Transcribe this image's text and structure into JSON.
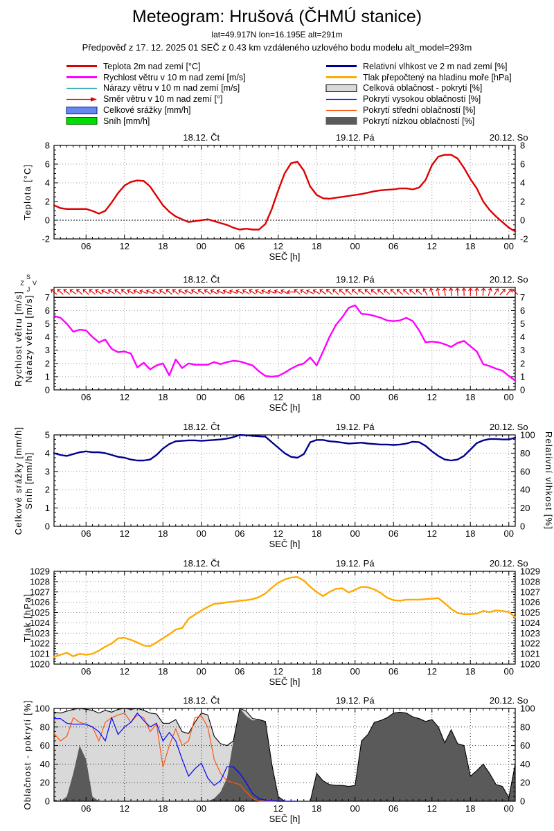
{
  "header": {
    "title": "Meteogram: Hrušová (ČHMÚ stanice)",
    "subtitle1": "lat=49.917N lon=16.195E alt=291m",
    "subtitle2": "Předpověď z 17. 12. 2025 01 SEČ z 0.43 km vzdáleného uzlového bodu modelu alt_model=293m"
  },
  "legend": {
    "left": [
      {
        "label": "Teplota 2m nad zemí [°C]",
        "key": "line",
        "width": 3,
        "color": "#dd0000",
        "icon": "temperature-line-icon"
      },
      {
        "label": "Rychlost větru v 10 m nad zemí [m/s]",
        "key": "line",
        "width": 3,
        "color": "#ff00ff",
        "icon": "wind-speed-line-icon"
      },
      {
        "label": "Nárazy větru v 10 m nad zemí [m/s]",
        "key": "line",
        "width": 1.2,
        "color": "#0099aa",
        "icon": "wind-gust-line-icon"
      },
      {
        "label": "Směr větru v 10 m nad zemí [°]",
        "key": "arrow",
        "color": "#dd0000",
        "icon": "wind-direction-arrow-icon"
      },
      {
        "label": "Celkové srážky [mm/h]",
        "key": "box",
        "color": "#6688ee",
        "border": "#001a99",
        "icon": "precipitation-box-icon"
      },
      {
        "label": "Sníh [mm/h]",
        "key": "box",
        "color": "#00dd00",
        "border": "#006600",
        "icon": "snow-box-icon"
      }
    ],
    "right": [
      {
        "label": "Relativní vlhkost ve 2 m nad zemí [%]",
        "key": "line",
        "width": 3,
        "color": "#000090",
        "icon": "humidity-line-icon"
      },
      {
        "label": "Tlak přepočtený na hladinu moře [hPa]",
        "key": "line",
        "width": 3,
        "color": "#ffaa00",
        "icon": "pressure-line-icon"
      },
      {
        "label": "Celková oblačnost - pokrytí [%]",
        "key": "box",
        "color": "#d9d9d9",
        "border": "#000000",
        "icon": "total-cloud-box-icon"
      },
      {
        "label": "Pokrytí vysokou oblačností [%]",
        "key": "line",
        "width": 1.2,
        "color": "#0000ff",
        "icon": "high-cloud-line-icon"
      },
      {
        "label": "Pokrytí střední oblačností [%]",
        "key": "line",
        "width": 1.2,
        "color": "#ff5511",
        "icon": "middle-cloud-line-icon"
      },
      {
        "label": "Pokrytí nízkou oblačností [%]",
        "key": "box",
        "color": "#5a5a5a",
        "border": "#5a5a5a",
        "icon": "low-cloud-box-icon"
      }
    ]
  },
  "x_axis": {
    "label": "SEČ [h]",
    "n_points": 73,
    "tick_positions": [
      5,
      11,
      17,
      23,
      29,
      35,
      41,
      47,
      53,
      59,
      65,
      71
    ],
    "tick_labels": [
      "06",
      "12",
      "18",
      "00",
      "06",
      "12",
      "18",
      "00",
      "06",
      "12",
      "18",
      "00"
    ],
    "day_labels": [
      {
        "pos": 23,
        "text": "18.12. Čt"
      },
      {
        "pos": 47,
        "text": "19.12. Pá"
      },
      {
        "pos": 71,
        "text": "20.12. So"
      }
    ]
  },
  "chart_data": [
    {
      "type": "line",
      "ylabels": [
        "Teplota [°C]"
      ],
      "ylim": [
        -2,
        8
      ],
      "yticks": [
        -2,
        0,
        2,
        4,
        6,
        8
      ],
      "yminor": 0.5,
      "ygrid": [
        2,
        4,
        6
      ],
      "ygrid_black": [
        0
      ],
      "series": [
        {
          "name": "Teplota 2m nad zemí [°C]",
          "color": "#dd0000",
          "width": 2.4,
          "values": [
            1.6,
            1.3,
            1.2,
            1.2,
            1.2,
            1.2,
            1.0,
            0.7,
            1.0,
            1.9,
            2.9,
            3.7,
            4.1,
            4.25,
            4.2,
            3.6,
            2.6,
            1.6,
            0.9,
            0.4,
            0.1,
            -0.2,
            -0.1,
            0.0,
            0.1,
            -0.1,
            -0.3,
            -0.5,
            -0.8,
            -1.0,
            -0.9,
            -1.0,
            -1.0,
            -0.4,
            1.2,
            3.2,
            5.0,
            6.1,
            6.25,
            5.3,
            3.6,
            2.7,
            2.35,
            2.3,
            2.4,
            2.5,
            2.6,
            2.7,
            2.8,
            2.95,
            3.1,
            3.2,
            3.25,
            3.3,
            3.4,
            3.4,
            3.3,
            3.5,
            4.3,
            5.9,
            6.8,
            7.0,
            7.0,
            6.6,
            5.6,
            4.4,
            3.4,
            2.0,
            1.1,
            0.4,
            -0.2,
            -0.8,
            -1.2
          ]
        }
      ]
    },
    {
      "type": "line",
      "ylabels": [
        "Rychlost větru [m/s]",
        "Nárazy větru [m/s]"
      ],
      "ylim": [
        0,
        7.75
      ],
      "yticks": [
        0,
        1,
        2,
        3,
        4,
        5,
        6,
        7
      ],
      "yminor": 0.25,
      "ygrid": [
        1,
        2,
        3,
        4,
        5,
        6
      ],
      "solid_line": 7,
      "no_top_ticks": true,
      "compass": {
        "top": "S",
        "right": "V",
        "bottom": "J",
        "left": "Z"
      },
      "wind_arrows": {
        "color": "#dd0000",
        "y_value": 7.4,
        "angles_deg": [
          140,
          137,
          141,
          144,
          139,
          137,
          142,
          147,
          153,
          148,
          143,
          139,
          149,
          154,
          159,
          156,
          151,
          147,
          138,
          142,
          150,
          155,
          148,
          143,
          145,
          150,
          155,
          158,
          161,
          155,
          149,
          147,
          152,
          157,
          163,
          158,
          151,
          180,
          141,
          148,
          155,
          150,
          143,
          139,
          136,
          138,
          137,
          139,
          141,
          138,
          140,
          137,
          139,
          136,
          138,
          136,
          139,
          137,
          118,
          108,
          102,
          98,
          96,
          94,
          92,
          90,
          88,
          84,
          72,
          58,
          48,
          52,
          135
        ]
      },
      "series": [
        {
          "name": "Rychlost větru v 10 m nad zemí [m/s]",
          "color": "#ff00ff",
          "width": 2.4,
          "values": [
            5.6,
            5.45,
            5.0,
            4.4,
            4.55,
            4.5,
            4.0,
            3.6,
            3.8,
            3.1,
            2.85,
            2.9,
            2.75,
            1.7,
            2.05,
            1.55,
            1.85,
            2.0,
            1.1,
            2.3,
            1.65,
            2.0,
            1.9,
            1.9,
            1.9,
            2.1,
            1.95,
            2.1,
            2.2,
            2.15,
            2.0,
            1.85,
            1.4,
            1.05,
            1.0,
            1.05,
            1.3,
            1.6,
            1.85,
            2.0,
            2.45,
            1.85,
            2.9,
            4.0,
            4.9,
            5.5,
            6.2,
            6.4,
            5.75,
            5.7,
            5.6,
            5.45,
            5.25,
            5.2,
            5.25,
            5.45,
            5.2,
            4.5,
            3.6,
            3.65,
            3.6,
            3.45,
            3.25,
            3.55,
            3.7,
            3.3,
            2.9,
            1.95,
            1.8,
            1.6,
            1.45,
            1.05,
            0.7
          ]
        }
      ]
    },
    {
      "type": "line",
      "ylabels": [
        "Celkové srážky [mm/h]",
        "Sníh [mm/h]"
      ],
      "ylim": [
        0,
        5
      ],
      "yticks": [
        0,
        1,
        2,
        3,
        4,
        5
      ],
      "yminor": 0.25,
      "ygrid": [
        1,
        2,
        3,
        4
      ],
      "right": {
        "label": "Relativní vlhkost [%]",
        "ylim": [
          0,
          100
        ],
        "yticks": [
          0,
          20,
          40,
          60,
          80,
          100
        ],
        "yminor": 5
      },
      "series": [
        {
          "name": "Relativní vlhkost ve 2 m nad zemí [%]",
          "axis": "right",
          "color": "#000090",
          "width": 2.4,
          "values": [
            80,
            78,
            77,
            79,
            81,
            82,
            81,
            81,
            80,
            78,
            76,
            75,
            73,
            72,
            72,
            73,
            78,
            85,
            90,
            93,
            93.5,
            94,
            94,
            93.5,
            94,
            94.5,
            95,
            96,
            97.5,
            100,
            99.5,
            99,
            98.5,
            98,
            92,
            86,
            80,
            76,
            75,
            79,
            92,
            94.5,
            94.5,
            93,
            92.5,
            91.5,
            90.5,
            91,
            91.5,
            90.5,
            90,
            89.5,
            89.5,
            89,
            89.5,
            90.5,
            92.5,
            92,
            88,
            82,
            77,
            73,
            72,
            73,
            77,
            84,
            91,
            94,
            95.5,
            95.5,
            95,
            95,
            97
          ]
        }
      ]
    },
    {
      "type": "line",
      "ylabels": [
        "Tlak [hPa]"
      ],
      "ylim": [
        1020,
        1029
      ],
      "yticks": [
        1020,
        1021,
        1022,
        1023,
        1024,
        1025,
        1026,
        1027,
        1028,
        1029
      ],
      "yminor": 0.25,
      "ygrid": [
        1021,
        1022,
        1023,
        1024,
        1025,
        1026,
        1027,
        1028
      ],
      "series": [
        {
          "name": "Tlak přepočtený na hladinu moře [hPa]",
          "color": "#ffaa00",
          "width": 2.4,
          "values": [
            1020.7,
            1020.9,
            1021.1,
            1020.75,
            1021.0,
            1020.9,
            1021.0,
            1021.3,
            1021.7,
            1022.0,
            1022.5,
            1022.55,
            1022.35,
            1022.1,
            1021.8,
            1021.75,
            1022.1,
            1022.5,
            1022.9,
            1023.35,
            1023.5,
            1024.4,
            1024.8,
            1025.2,
            1025.55,
            1025.85,
            1025.9,
            1026.0,
            1026.05,
            1026.15,
            1026.2,
            1026.3,
            1026.5,
            1026.85,
            1027.4,
            1027.9,
            1028.2,
            1028.4,
            1028.45,
            1028.1,
            1027.5,
            1027.0,
            1026.6,
            1027.0,
            1027.3,
            1027.35,
            1026.95,
            1027.2,
            1027.5,
            1027.45,
            1027.25,
            1026.9,
            1026.45,
            1026.2,
            1026.15,
            1026.25,
            1026.25,
            1026.25,
            1026.3,
            1026.35,
            1026.4,
            1025.9,
            1025.35,
            1024.95,
            1024.85,
            1024.85,
            1024.9,
            1025.15,
            1025.05,
            1025.2,
            1025.15,
            1025.05,
            1024.55
          ]
        }
      ]
    },
    {
      "type": "area",
      "ylabels": [
        "Oblačnost - pokrytí [%]"
      ],
      "ylim": [
        0,
        100
      ],
      "yticks": [
        0,
        20,
        40,
        60,
        80,
        100
      ],
      "yminor": 5,
      "ygrid": [
        20,
        40,
        60,
        80
      ],
      "grid_dark": true,
      "fills": [
        {
          "name": "Celková oblačnost - pokrytí [%]",
          "color": "#d9d9d9",
          "outline": "#000000",
          "values": [
            96,
            95,
            97,
            99,
            100,
            99,
            98,
            95,
            98,
            96,
            99,
            100,
            99,
            100,
            98,
            95,
            94,
            84,
            84,
            88,
            75,
            73,
            85,
            95,
            93,
            70,
            62,
            60,
            65,
            100,
            97,
            89,
            88,
            86,
            40,
            5,
            0,
            0,
            0,
            0,
            0,
            30,
            22,
            18,
            17,
            17,
            16,
            17,
            65,
            72,
            85,
            87,
            90,
            95,
            96,
            95,
            91,
            89,
            86,
            88,
            80,
            63,
            77,
            62,
            60,
            27,
            33,
            40,
            30,
            18,
            16,
            4,
            40
          ]
        },
        {
          "name": "Pokrytí nízkou oblačností [%]",
          "color": "#5a5a5a",
          "values": [
            2,
            0,
            5,
            30,
            60,
            45,
            5,
            0,
            0,
            0,
            0,
            0,
            0,
            0,
            0,
            0,
            0,
            0,
            0,
            0,
            0,
            0,
            0,
            0,
            0,
            3,
            10,
            25,
            65,
            100,
            92,
            87,
            88,
            86,
            40,
            5,
            0,
            0,
            0,
            0,
            0,
            30,
            22,
            18,
            17,
            17,
            16,
            17,
            65,
            72,
            85,
            87,
            90,
            95,
            96,
            95,
            91,
            89,
            86,
            88,
            80,
            63,
            77,
            62,
            60,
            27,
            33,
            40,
            30,
            18,
            16,
            4,
            40
          ]
        }
      ],
      "lines": [
        {
          "name": "Pokrytí střední oblačností [%]",
          "color": "#ff5511",
          "width": 1.2,
          "values": [
            73,
            65,
            70,
            90,
            85,
            83,
            80,
            65,
            85,
            90,
            93,
            95,
            85,
            93,
            90,
            75,
            83,
            37,
            60,
            78,
            60,
            65,
            90,
            92,
            80,
            45,
            30,
            22,
            20,
            18,
            10,
            3,
            0,
            0,
            0,
            0,
            null,
            null,
            null,
            null,
            null,
            null,
            null,
            null,
            null,
            null,
            null,
            null,
            null,
            null,
            null,
            null,
            null,
            null,
            null,
            null,
            null,
            null,
            null,
            null,
            null,
            null,
            null,
            null,
            null,
            null,
            null,
            null,
            null,
            null,
            null,
            null,
            null
          ]
        },
        {
          "name": "Pokrytí vysokou oblačností [%]",
          "color": "#0000ff",
          "width": 1.2,
          "values": [
            89,
            89,
            84,
            83,
            83,
            83,
            80,
            75,
            65,
            90,
            72,
            80,
            85,
            95,
            87,
            80,
            84,
            65,
            74,
            65,
            45,
            27,
            35,
            41,
            25,
            17,
            22,
            37,
            37,
            30,
            20,
            8,
            3,
            1,
            1,
            0,
            0,
            0,
            0,
            null,
            null,
            null,
            null,
            null,
            null,
            null,
            null,
            null,
            null,
            null,
            null,
            null,
            null,
            null,
            null,
            null,
            null,
            null,
            null,
            null,
            null,
            null,
            null,
            null,
            null,
            null,
            null,
            null,
            null,
            null,
            null,
            null,
            null
          ]
        }
      ]
    }
  ]
}
